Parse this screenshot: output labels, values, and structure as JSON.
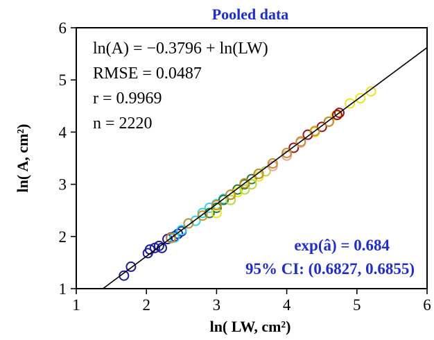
{
  "chart_data": {
    "type": "scatter",
    "title": "Pooled data",
    "xlabel": "ln( LW, cm²)",
    "ylabel": "ln( A, cm²)",
    "xlim": [
      1,
      6
    ],
    "ylim": [
      1,
      6
    ],
    "xticks": [
      1,
      2,
      3,
      4,
      5,
      6
    ],
    "yticks": [
      1,
      2,
      3,
      4,
      5,
      6
    ],
    "grid": false,
    "legend": "none",
    "fit_line": {
      "intercept": -0.3796,
      "slope": 1,
      "color": "#000000"
    },
    "annotations": {
      "equation": "ln(A) = −0.3796 + ln(LW)",
      "rmse": "RMSE = 0.0487",
      "r": "r = 0.9969",
      "n": "n = 2220",
      "exp_a": "exp(â) = 0.684",
      "ci": "95% CI: (0.6827, 0.6855)"
    },
    "series": [
      {
        "color": "#1a1aa0",
        "points": [
          [
            1.68,
            1.25
          ],
          [
            1.78,
            1.42
          ],
          [
            2.02,
            1.68
          ],
          [
            2.05,
            1.75
          ],
          [
            2.12,
            1.78
          ],
          [
            2.18,
            1.82
          ],
          [
            2.22,
            1.78
          ],
          [
            2.3,
            1.95
          ],
          [
            2.35,
            1.98
          ],
          [
            2.4,
            2.0
          ],
          [
            2.45,
            2.05
          ],
          [
            2.5,
            2.1
          ]
        ]
      },
      {
        "color": "#2fd3e6",
        "points": [
          [
            2.4,
            1.98
          ],
          [
            2.5,
            2.12
          ],
          [
            2.6,
            2.25
          ],
          [
            2.7,
            2.3
          ],
          [
            2.8,
            2.45
          ],
          [
            2.9,
            2.55
          ],
          [
            3.0,
            2.62
          ],
          [
            3.1,
            2.72
          ]
        ]
      },
      {
        "color": "#1f7a2a",
        "points": [
          [
            2.9,
            2.45
          ],
          [
            3.0,
            2.55
          ],
          [
            3.1,
            2.7
          ],
          [
            3.2,
            2.8
          ],
          [
            3.3,
            2.9
          ],
          [
            3.4,
            3.0
          ],
          [
            3.5,
            3.1
          ],
          [
            3.6,
            3.2
          ]
        ]
      },
      {
        "color": "#e8e81a",
        "points": [
          [
            3.0,
            2.45
          ],
          [
            3.3,
            2.85
          ],
          [
            3.6,
            3.15
          ],
          [
            4.0,
            3.55
          ],
          [
            4.4,
            4.0
          ],
          [
            4.7,
            4.32
          ],
          [
            4.9,
            4.55
          ],
          [
            5.05,
            4.65
          ],
          [
            5.2,
            4.78
          ]
        ]
      },
      {
        "color": "#b8d838",
        "points": [
          [
            3.2,
            2.7
          ],
          [
            3.4,
            2.9
          ],
          [
            3.5,
            3.0
          ],
          [
            3.7,
            3.25
          ]
        ]
      },
      {
        "color": "#9b1010",
        "points": [
          [
            4.1,
            3.7
          ],
          [
            4.3,
            3.95
          ],
          [
            4.5,
            4.1
          ],
          [
            4.6,
            4.2
          ],
          [
            4.72,
            4.33
          ],
          [
            4.75,
            4.37
          ]
        ]
      },
      {
        "color": "#f0a0a8",
        "points": [
          [
            3.8,
            3.35
          ],
          [
            4.0,
            3.55
          ],
          [
            4.2,
            3.8
          ]
        ]
      },
      {
        "color": "#c89028",
        "points": [
          [
            2.35,
            1.97
          ],
          [
            2.6,
            2.25
          ],
          [
            2.8,
            2.4
          ],
          [
            3.0,
            2.6
          ],
          [
            3.2,
            2.8
          ],
          [
            3.4,
            3.02
          ],
          [
            3.6,
            3.2
          ],
          [
            3.8,
            3.4
          ],
          [
            4.0,
            3.6
          ],
          [
            4.2,
            3.82
          ],
          [
            4.4,
            4.02
          ],
          [
            4.6,
            4.2
          ]
        ]
      }
    ]
  }
}
